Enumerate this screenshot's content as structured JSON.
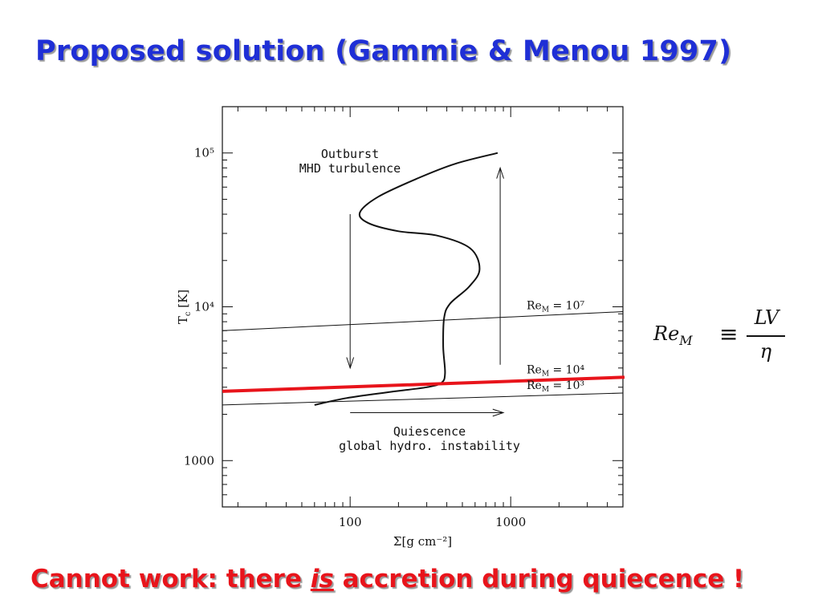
{
  "slide": {
    "title": "Proposed solution (Gammie & Menou 1997)",
    "footer_before": "Cannot work: there ",
    "footer_emph": "is",
    "footer_after": " accretion during quiecence !",
    "title_color": "#1f2fd6",
    "footer_color": "#e8141b"
  },
  "formula": {
    "lhs": "Re",
    "lhs_sub": "M",
    "equiv": "≡",
    "numerator": "LV",
    "denominator": "η"
  },
  "chart_data": {
    "type": "line",
    "x_scale": "log",
    "y_scale": "log",
    "xlim": [
      16,
      5000
    ],
    "ylim": [
      500,
      200000
    ],
    "xlabel": "Σ[g cm⁻²]",
    "ylabel": "T",
    "ylabel_sub": "c",
    "ylabel_unit": " [K]",
    "x_ticks": [
      {
        "value": 100,
        "label": "100"
      },
      {
        "value": 1000,
        "label": "1000"
      }
    ],
    "y_ticks": [
      {
        "value": 1000,
        "label": "1000"
      },
      {
        "value": 10000,
        "label": "10⁴"
      },
      {
        "value": 100000,
        "label": "10⁵"
      }
    ],
    "series": [
      {
        "role": "s-curve",
        "x": [
          60,
          95,
          180,
          300,
          370,
          390,
          380,
          385,
          420,
          550,
          640,
          560,
          350,
          200,
          130,
          115,
          150,
          260,
          450,
          830
        ],
        "y": [
          2300,
          2550,
          2800,
          3000,
          3200,
          3700,
          5500,
          8500,
          10500,
          13500,
          17500,
          24000,
          29000,
          31000,
          35000,
          41000,
          52000,
          68000,
          85000,
          100000
        ]
      },
      {
        "role": "ReM-1e7",
        "label": "Re",
        "label_sub": "M",
        "label_val": " =  10⁷",
        "x": [
          16,
          5000
        ],
        "y": [
          7000,
          9300
        ]
      },
      {
        "role": "ReM-1e4",
        "label": "Re",
        "label_sub": "M",
        "label_val": " =  10⁴",
        "x": [
          16,
          5000
        ],
        "y": [
          2800,
          3500
        ]
      },
      {
        "role": "ReM-1e4-highlight",
        "x": [
          16,
          5000
        ],
        "y": [
          2820,
          3480
        ],
        "color": "#e8141b"
      },
      {
        "role": "ReM-1e3",
        "label": "Re",
        "label_sub": "M",
        "label_val": " =  10³",
        "x": [
          16,
          5000
        ],
        "y": [
          2300,
          2750
        ]
      }
    ],
    "arrows": [
      {
        "role": "down",
        "from": [
          100,
          40000
        ],
        "to": [
          100,
          4000
        ]
      },
      {
        "role": "up",
        "from": [
          860,
          4200
        ],
        "to": [
          860,
          80000
        ]
      },
      {
        "role": "right",
        "from": [
          100,
          2050
        ],
        "to": [
          900,
          2050
        ]
      }
    ],
    "annotations": [
      {
        "role": "outburst",
        "lines": [
          "Outburst",
          "MHD turbulence"
        ],
        "x": 70,
        "y": 100000
      },
      {
        "role": "quiescence",
        "lines": [
          "Quiescence",
          "global hydro. instability"
        ],
        "x": 190,
        "y": 1800
      }
    ]
  }
}
